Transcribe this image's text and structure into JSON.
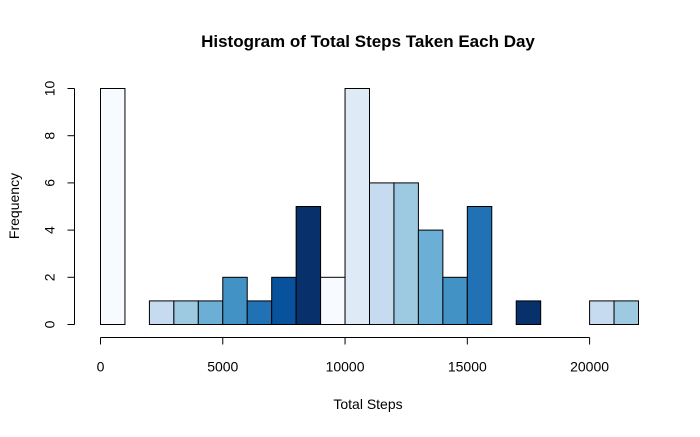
{
  "chart_data": {
    "type": "bar",
    "title": "Histogram of Total Steps Taken Each Day",
    "xlabel": "Total Steps",
    "ylabel": "Frequency",
    "bin_width": 1000,
    "bins": [
      {
        "start": 0,
        "end": 1000,
        "count": 10,
        "color": "#f7fbff"
      },
      {
        "start": 1000,
        "end": 2000,
        "count": 0,
        "color": "#deebf7"
      },
      {
        "start": 2000,
        "end": 3000,
        "count": 1,
        "color": "#c6dbef"
      },
      {
        "start": 3000,
        "end": 4000,
        "count": 1,
        "color": "#9ecae1"
      },
      {
        "start": 4000,
        "end": 5000,
        "count": 1,
        "color": "#6baed6"
      },
      {
        "start": 5000,
        "end": 6000,
        "count": 2,
        "color": "#4292c6"
      },
      {
        "start": 6000,
        "end": 7000,
        "count": 1,
        "color": "#2171b5"
      },
      {
        "start": 7000,
        "end": 8000,
        "count": 2,
        "color": "#08519c"
      },
      {
        "start": 8000,
        "end": 9000,
        "count": 5,
        "color": "#08306b"
      },
      {
        "start": 9000,
        "end": 10000,
        "count": 2,
        "color": "#f7fbff"
      },
      {
        "start": 10000,
        "end": 11000,
        "count": 10,
        "color": "#deebf7"
      },
      {
        "start": 11000,
        "end": 12000,
        "count": 6,
        "color": "#c6dbef"
      },
      {
        "start": 12000,
        "end": 13000,
        "count": 6,
        "color": "#9ecae1"
      },
      {
        "start": 13000,
        "end": 14000,
        "count": 4,
        "color": "#6baed6"
      },
      {
        "start": 14000,
        "end": 15000,
        "count": 2,
        "color": "#4292c6"
      },
      {
        "start": 15000,
        "end": 16000,
        "count": 5,
        "color": "#2171b5"
      },
      {
        "start": 16000,
        "end": 17000,
        "count": 0,
        "color": "#08519c"
      },
      {
        "start": 17000,
        "end": 18000,
        "count": 1,
        "color": "#08306b"
      },
      {
        "start": 18000,
        "end": 19000,
        "count": 0,
        "color": "#f7fbff"
      },
      {
        "start": 19000,
        "end": 20000,
        "count": 0,
        "color": "#deebf7"
      },
      {
        "start": 20000,
        "end": 21000,
        "count": 1,
        "color": "#c6dbef"
      },
      {
        "start": 21000,
        "end": 22000,
        "count": 1,
        "color": "#9ecae1"
      }
    ],
    "xlim": [
      0,
      22000
    ],
    "ylim": [
      0,
      10
    ],
    "x_ticks": [
      0,
      5000,
      10000,
      15000,
      20000
    ],
    "y_ticks": [
      0,
      2,
      4,
      6,
      8,
      10
    ],
    "grid": false,
    "legend": "none"
  }
}
